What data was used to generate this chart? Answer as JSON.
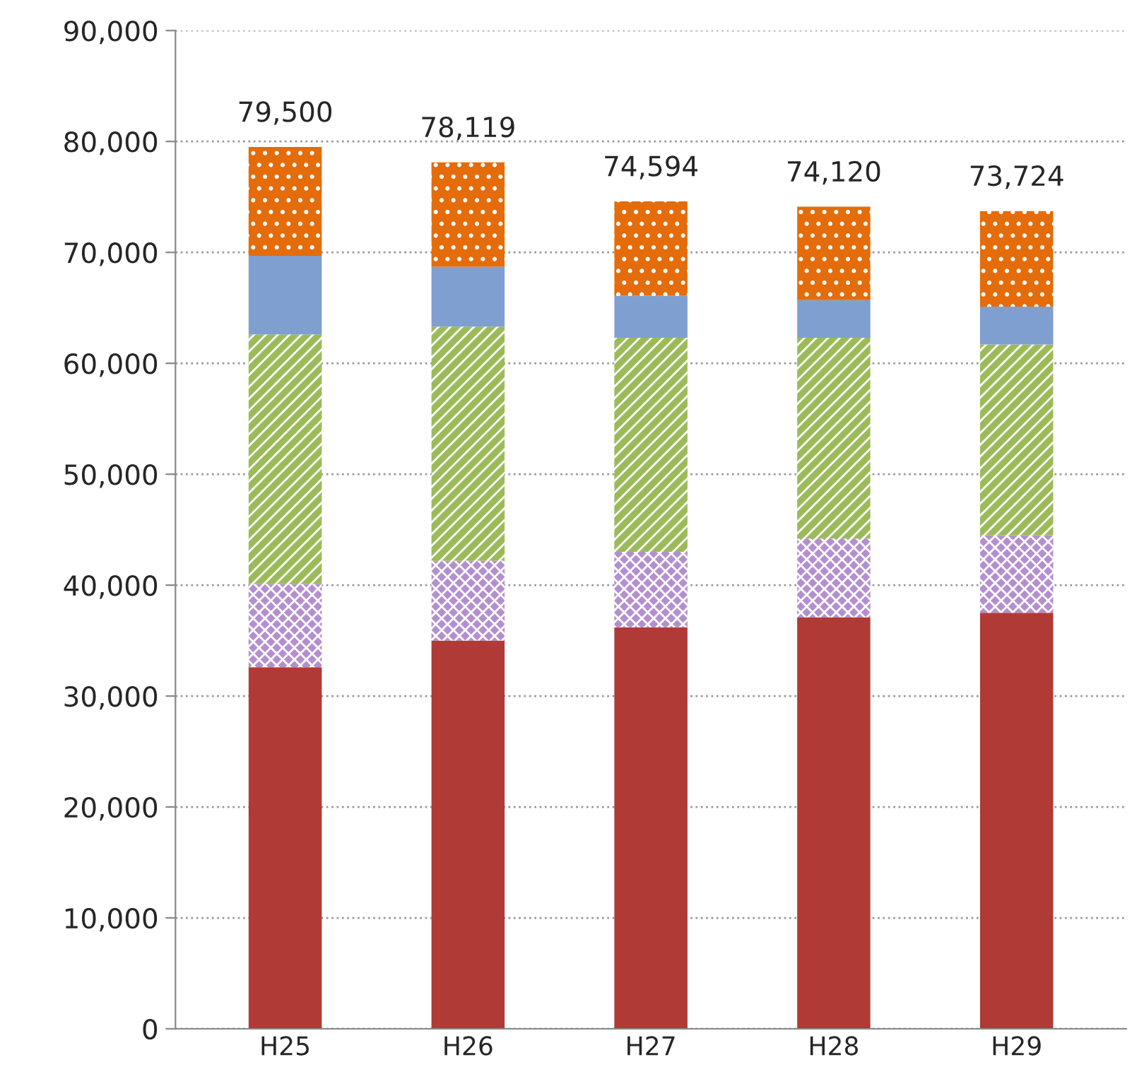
{
  "chart_data": {
    "type": "bar",
    "stacked": true,
    "categories": [
      "H25",
      "H26",
      "H27",
      "H28",
      "H29"
    ],
    "series": [
      {
        "color": "#b03a35",
        "values": [
          32600,
          35000,
          36200,
          37100,
          37500
        ]
      },
      {
        "color": "#b48fd0",
        "values": [
          7500,
          7200,
          6800,
          7100,
          7000
        ]
      },
      {
        "color": "#9bbb59",
        "values": [
          22500,
          21100,
          19300,
          18100,
          17200
        ]
      },
      {
        "color": "#7f9fd0",
        "values": [
          7100,
          5400,
          3800,
          3400,
          3400
        ]
      },
      {
        "color": "#e46c0a",
        "values": [
          9800,
          9419,
          8494,
          8420,
          8624
        ]
      }
    ],
    "totals": [
      "79,500",
      "78,119",
      "74,594",
      "74,120",
      "73,724"
    ],
    "ylim": [
      0,
      90000
    ],
    "yticks": [
      0,
      {
        "value": 10000,
        "label": "10,000"
      },
      {
        "value": 20000,
        "label": "20,000"
      },
      {
        "value": 30000,
        "label": "30,000"
      },
      {
        "value": 40000,
        "label": "40,000"
      },
      {
        "value": 50000,
        "label": "50,000"
      },
      {
        "value": 60000,
        "label": "60,000"
      },
      {
        "value": 70000,
        "label": "70,000"
      },
      {
        "value": 80000,
        "label": "80,000"
      },
      {
        "value": 90000,
        "label": "90,000"
      }
    ],
    "grid": "y",
    "legend": false
  }
}
